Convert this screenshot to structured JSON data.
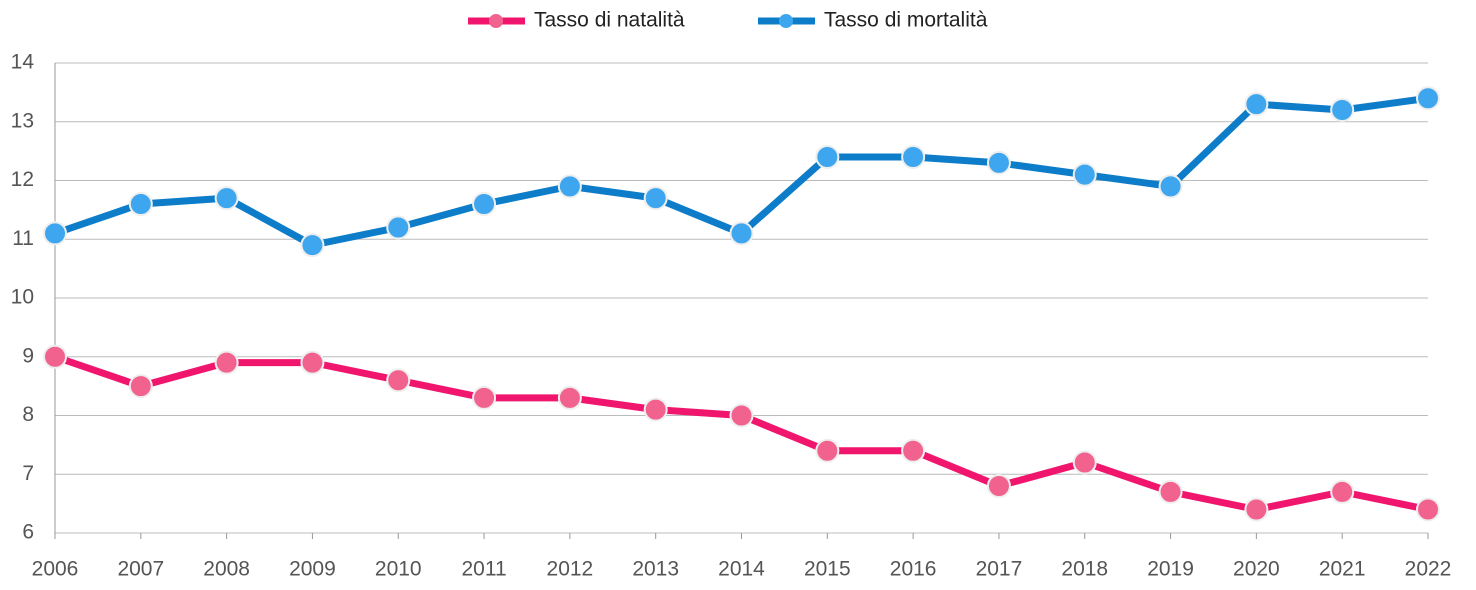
{
  "chart_data": {
    "type": "line",
    "categories": [
      "2006",
      "2007",
      "2008",
      "2009",
      "2010",
      "2011",
      "2012",
      "2013",
      "2014",
      "2015",
      "2016",
      "2017",
      "2018",
      "2019",
      "2020",
      "2021",
      "2022"
    ],
    "series": [
      {
        "name": "Tasso di natalità",
        "color": "#f0166e",
        "marker_color": "#f2628f",
        "values": [
          9.0,
          8.5,
          8.9,
          8.9,
          8.6,
          8.3,
          8.3,
          8.1,
          8.0,
          7.4,
          7.4,
          6.8,
          7.2,
          6.7,
          6.4,
          6.7,
          6.4
        ]
      },
      {
        "name": "Tasso di mortalità",
        "color": "#0d7cc9",
        "marker_color": "#3ea6ef",
        "values": [
          11.1,
          11.6,
          11.7,
          10.9,
          11.2,
          11.6,
          11.9,
          11.7,
          11.1,
          12.4,
          12.4,
          12.3,
          12.1,
          11.9,
          13.3,
          13.2,
          13.4
        ]
      }
    ],
    "ylim": [
      6,
      14
    ],
    "yticks": [
      6,
      7,
      8,
      9,
      10,
      11,
      12,
      13,
      14
    ],
    "grid": true,
    "legend": "top"
  }
}
